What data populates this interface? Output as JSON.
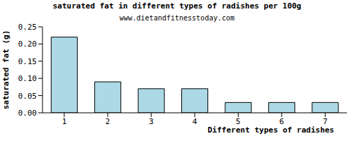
{
  "chart_data": {
    "type": "bar",
    "title": "saturated fat in different types of radishes per 100g",
    "subtitle": "www.dietandfitnesstoday.com",
    "x_label": "Different types of radishes",
    "y_label": "saturated fat (g)",
    "categories": [
      "1",
      "2",
      "3",
      "4",
      "5",
      "6",
      "7"
    ],
    "values": [
      0.22,
      0.09,
      0.07,
      0.07,
      0.03,
      0.03,
      0.03
    ],
    "color": "#add8e6",
    "ylim": [
      0,
      0.25
    ],
    "yticks": [
      {
        "value": 0,
        "label": "0.00"
      },
      0.05,
      {
        "value": 0.1,
        "label": "0.10"
      },
      0.15,
      {
        "value": 0.2,
        "label": "0.20"
      },
      0.25
    ],
    "grid": false
  }
}
